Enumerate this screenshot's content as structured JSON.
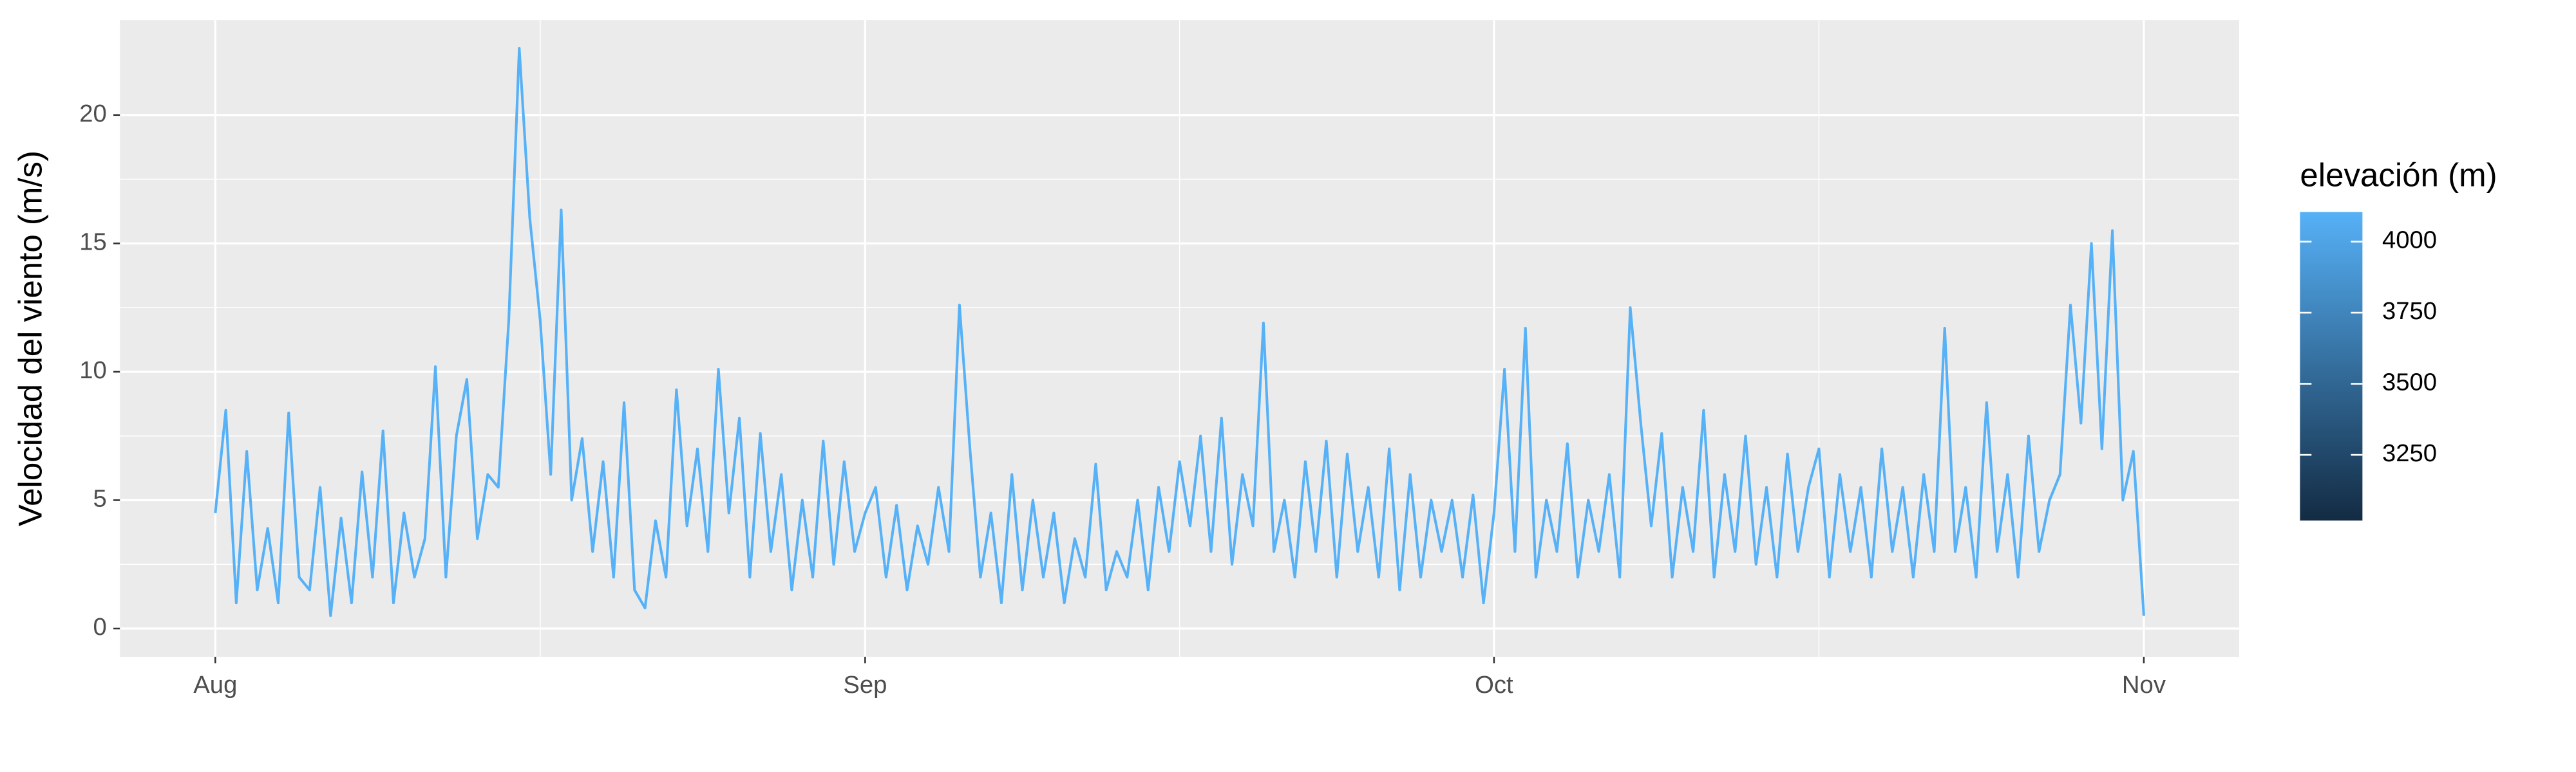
{
  "chart_data": {
    "type": "line",
    "y_label": "Velocidad del viento (m/s)",
    "color": "#56B1F7",
    "grid": true,
    "xlim": [
      -4.55,
      96.55
    ],
    "xticks": [
      {
        "value": 0,
        "label": "Aug"
      },
      {
        "value": 31,
        "label": "Sep"
      },
      {
        "value": 61,
        "label": "Oct"
      },
      {
        "value": 92,
        "label": "Nov"
      }
    ],
    "ylim": [
      -1.1,
      23.7
    ],
    "yticks": [
      0,
      5,
      10,
      15,
      20
    ],
    "x": [
      0,
      0.5,
      1,
      1.5,
      2,
      2.5,
      3,
      3.5,
      4,
      4.5,
      5,
      5.5,
      6,
      6.5,
      7,
      7.5,
      8,
      8.5,
      9,
      9.5,
      10,
      10.5,
      11,
      11.5,
      12,
      12.5,
      13,
      13.5,
      14,
      14.5,
      15,
      15.5,
      16,
      16.5,
      17,
      17.5,
      18,
      18.5,
      19,
      19.5,
      20,
      20.5,
      21,
      21.5,
      22,
      22.5,
      23,
      23.5,
      24,
      24.5,
      25,
      25.5,
      26,
      26.5,
      27,
      27.5,
      28,
      28.5,
      29,
      29.5,
      30,
      30.5,
      31,
      31.5,
      32,
      32.5,
      33,
      33.5,
      34,
      34.5,
      35,
      35.5,
      36,
      36.5,
      37,
      37.5,
      38,
      38.5,
      39,
      39.5,
      40,
      40.5,
      41,
      41.5,
      42,
      42.5,
      43,
      43.5,
      44,
      44.5,
      45,
      45.5,
      46,
      46.5,
      47,
      47.5,
      48,
      48.5,
      49,
      49.5,
      50,
      50.5,
      51,
      51.5,
      52,
      52.5,
      53,
      53.5,
      54,
      54.5,
      55,
      55.5,
      56,
      56.5,
      57,
      57.5,
      58,
      58.5,
      59,
      59.5,
      60,
      60.5,
      61,
      61.5,
      62,
      62.5,
      63,
      63.5,
      64,
      64.5,
      65,
      65.5,
      66,
      66.5,
      67,
      67.5,
      68,
      68.5,
      69,
      69.5,
      70,
      70.5,
      71,
      71.5,
      72,
      72.5,
      73,
      73.5,
      74,
      74.5,
      75,
      75.5,
      76,
      76.5,
      77,
      77.5,
      78,
      78.5,
      79,
      79.5,
      80,
      80.5,
      81,
      81.5,
      82,
      82.5,
      83,
      83.5,
      84,
      84.5,
      85,
      85.5,
      86,
      86.5,
      87,
      87.5,
      88,
      88.5,
      89,
      89.5,
      90,
      90.5,
      91,
      91.5,
      92
    ],
    "values": [
      4.5,
      8.5,
      1,
      6.9,
      1.5,
      3.9,
      1,
      8.4,
      2,
      1.5,
      5.5,
      0.5,
      4.3,
      1,
      6.1,
      2,
      7.7,
      1,
      4.5,
      2,
      3.5,
      10.2,
      2,
      7.5,
      9.7,
      3.5,
      6,
      5.5,
      12,
      22.6,
      16,
      12,
      6,
      16.3,
      5,
      7.4,
      3,
      6.5,
      2,
      8.8,
      1.5,
      0.8,
      4.2,
      2,
      9.3,
      4,
      7,
      3,
      10.1,
      4.5,
      8.2,
      2,
      7.6,
      3,
      6,
      1.5,
      5,
      2,
      7.3,
      2.5,
      6.5,
      3,
      4.5,
      5.5,
      2,
      4.8,
      1.5,
      4,
      2.5,
      5.5,
      3,
      12.6,
      7,
      2,
      4.5,
      1,
      6,
      1.5,
      5,
      2,
      4.5,
      1,
      3.5,
      2,
      6.4,
      1.5,
      3,
      2,
      5,
      1.5,
      5.5,
      3,
      6.5,
      4,
      7.5,
      3,
      8.2,
      2.5,
      6,
      4,
      11.9,
      3,
      5,
      2,
      6.5,
      3,
      7.3,
      2,
      6.8,
      3,
      5.5,
      2,
      7,
      1.5,
      6,
      2,
      5,
      3,
      5,
      2,
      5.2,
      1,
      4.5,
      10.1,
      3,
      11.7,
      2,
      5,
      3,
      7.2,
      2,
      5,
      3,
      6,
      2,
      12.5,
      8,
      4,
      7.6,
      2,
      5.5,
      3,
      8.5,
      2,
      6,
      3,
      7.5,
      2.5,
      5.5,
      2,
      6.8,
      3,
      5.5,
      7,
      2,
      6,
      3,
      5.5,
      2,
      7,
      3,
      5.5,
      2,
      6,
      3,
      11.7,
      3,
      5.5,
      2,
      8.8,
      3,
      6,
      2,
      7.5,
      3,
      5,
      6,
      12.6,
      8,
      15,
      7,
      15.5,
      5,
      6.9,
      0.5
    ],
    "legend": {
      "title": "elevación (m)",
      "lim": [
        3019,
        4104
      ],
      "ticks": [
        3250,
        3500,
        3750,
        4000
      ],
      "colors": [
        "#132B43",
        "#56B1F7"
      ]
    }
  }
}
